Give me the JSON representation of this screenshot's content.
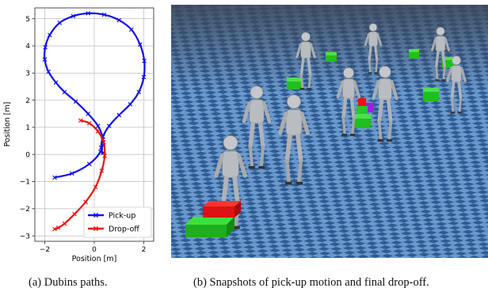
{
  "figure_a": {
    "caption": "(a) Dubins paths."
  },
  "figure_b": {
    "caption": "(b) Snapshots of pick-up motion and final drop-off.",
    "colors": {
      "sky": "#3d4656",
      "floor_tile_light": "#5f8fc4",
      "floor_tile_dark": "#2f5b92",
      "robot": "#b9bcc0",
      "box_green": "#22cc22",
      "box_red": "#ee1111",
      "box_purple": "#9a22dd"
    }
  },
  "chart_data": {
    "type": "line",
    "xlabel": "Position [m]",
    "ylabel": "Position [m]",
    "xlim": [
      -2.4,
      2.4
    ],
    "ylim": [
      -3.2,
      5.4
    ],
    "xticks": [
      -2,
      0,
      2
    ],
    "yticks": [
      -3,
      -2,
      -1,
      0,
      1,
      2,
      3,
      4,
      5
    ],
    "grid": true,
    "legend": "bottom-right",
    "series": [
      {
        "name": "Pick-up",
        "color": "#1111ee",
        "marker": "x",
        "x": [
          -1.6,
          -0.9,
          -0.2,
          0.25,
          0.35,
          0.15,
          -0.25,
          -0.75,
          -1.2,
          -1.55,
          -1.85,
          -2.0,
          -1.98,
          -1.8,
          -1.4,
          -0.85,
          -0.25,
          0.4,
          1.0,
          1.5,
          1.85,
          2.02,
          2.0,
          1.8,
          1.45,
          1.0,
          0.6,
          0.35,
          0.28,
          0.35
        ],
        "y": [
          -0.85,
          -0.7,
          -0.35,
          0.1,
          0.55,
          1.05,
          1.5,
          1.95,
          2.3,
          2.65,
          3.05,
          3.5,
          3.95,
          4.4,
          4.85,
          5.1,
          5.2,
          5.15,
          4.95,
          4.6,
          4.05,
          3.45,
          2.85,
          2.3,
          1.85,
          1.45,
          1.05,
          0.65,
          0.25,
          0.05
        ]
      },
      {
        "name": "Drop-off",
        "color": "#ee1111",
        "marker": "x",
        "x": [
          -0.55,
          -0.2,
          0.15,
          0.38,
          0.42,
          0.3,
          0.05,
          -0.35,
          -0.8,
          -1.2,
          -1.45,
          -1.6
        ],
        "y": [
          1.25,
          1.15,
          0.85,
          0.45,
          -0.05,
          -0.6,
          -1.2,
          -1.75,
          -2.2,
          -2.55,
          -2.7,
          -2.75
        ]
      }
    ]
  }
}
